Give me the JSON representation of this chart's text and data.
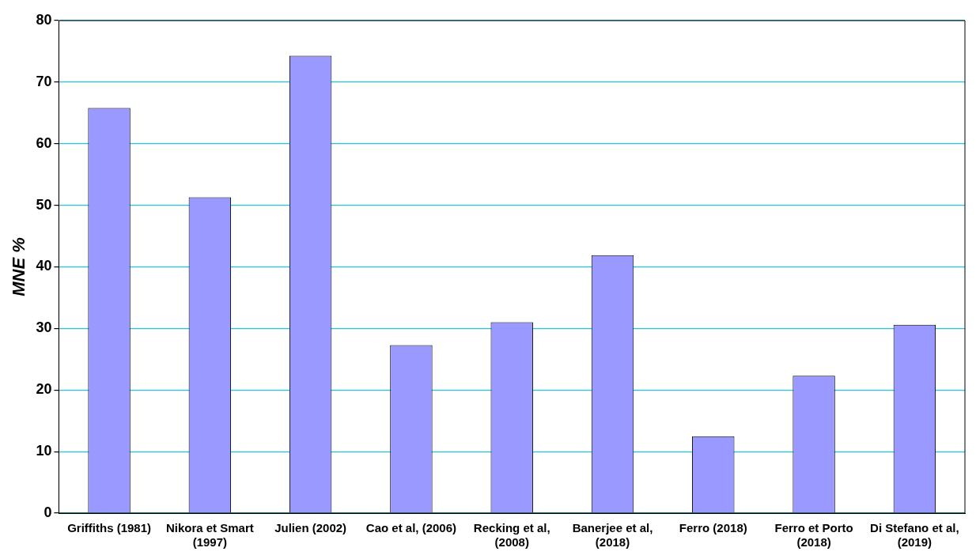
{
  "chart_data": {
    "type": "bar",
    "ylabel": "MNE %",
    "categories": [
      "Griffiths (1981)",
      "Nikora et Smart (1997)",
      "Julien (2002)",
      "Cao et al, (2006)",
      "Recking et al, (2008)",
      "Banerjee et al, (2018)",
      "Ferro (2018)",
      "Ferro et Porto (2018)",
      "Di Stefano et al, (2019)"
    ],
    "values": [
      65.8,
      51.3,
      74.3,
      27.3,
      31.0,
      41.9,
      12.5,
      22.3,
      30.6
    ],
    "color": "#9999ff",
    "ylim": [
      0,
      80
    ],
    "yticks": [
      0,
      10,
      20,
      30,
      40,
      50,
      60,
      70,
      80
    ],
    "grid": "y",
    "legend": false
  }
}
